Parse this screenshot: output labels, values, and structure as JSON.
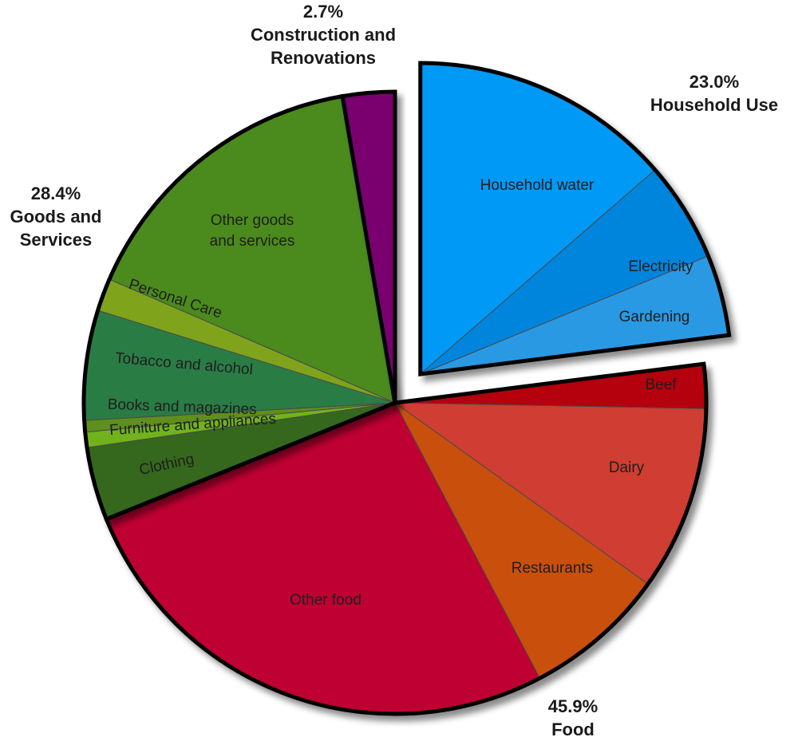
{
  "chart_data": {
    "type": "pie",
    "groups": [
      {
        "key": "household",
        "percent_label": "23.0%",
        "name_lines": [
          "Household Use"
        ],
        "value": 23.0,
        "exploded": true,
        "slices": [
          {
            "name": "Household water",
            "value": 13.6,
            "color": "#0099f5"
          },
          {
            "name": "Electricity",
            "value": 5.2,
            "color": "#0585dd"
          },
          {
            "name": "Gardening",
            "value": 4.2,
            "color": "#2b99e3"
          }
        ]
      },
      {
        "key": "food",
        "percent_label": "45.9%",
        "name_lines": [
          "Food"
        ],
        "value": 45.9,
        "exploded": false,
        "slices": [
          {
            "name": "Beef",
            "value": 2.3,
            "color": "#b5000d"
          },
          {
            "name": "Dairy",
            "value": 9.6,
            "color": "#d03e33"
          },
          {
            "name": "Restaurants",
            "value": 7.4,
            "color": "#c9500f"
          },
          {
            "name": "Other food",
            "value": 26.6,
            "color": "#bf0032"
          }
        ]
      },
      {
        "key": "goods",
        "percent_label": "28.4%",
        "name_lines": [
          "Goods and",
          "Services"
        ],
        "value": 28.4,
        "exploded": false,
        "slices": [
          {
            "name": "Clothing",
            "value": 3.8,
            "color": "#35671a"
          },
          {
            "name": "Furniture and appliances",
            "value": 0.8,
            "color": "#6fb31f"
          },
          {
            "name": "Books and magazines",
            "value": 0.6,
            "color": "#5e8f1e"
          },
          {
            "name": "Tobacco and alcohol",
            "value": 5.7,
            "color": "#2a7b45"
          },
          {
            "name": "Personal Care",
            "value": 1.7,
            "color": "#7fa41a"
          },
          {
            "name": "Other goods and services",
            "value": 15.8,
            "color": "#4b8a1c"
          }
        ]
      },
      {
        "key": "construction",
        "percent_label": "2.7%",
        "name_lines": [
          "Construction and",
          "Renovations"
        ],
        "value": 2.7,
        "exploded": false,
        "slices": [
          {
            "name": "",
            "value": 2.7,
            "color": "#7a0070"
          }
        ]
      }
    ]
  }
}
